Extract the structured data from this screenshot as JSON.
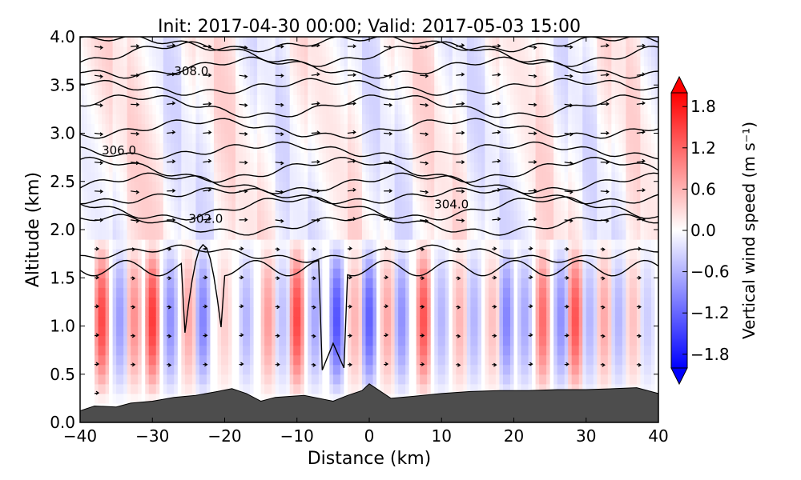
{
  "chart_data": {
    "type": "heatmap",
    "title": "Init: 2017-04-30 00:00; Valid: 2017-05-03 15:00",
    "xlabel": "Distance (km)",
    "ylabel": "Altitude (km)",
    "xlim": [
      -40,
      40
    ],
    "ylim": [
      0.0,
      4.0
    ],
    "x_ticks": [
      -40,
      -30,
      -20,
      -10,
      0,
      10,
      20,
      30,
      40
    ],
    "x_tick_labels": [
      "−40",
      "−30",
      "−20",
      "−10",
      "0",
      "10",
      "20",
      "30",
      "40"
    ],
    "y_ticks": [
      0.0,
      0.5,
      1.0,
      1.5,
      2.0,
      2.5,
      3.0,
      3.5,
      4.0
    ],
    "y_tick_labels": [
      "0.0",
      "0.5",
      "1.0",
      "1.5",
      "2.0",
      "2.5",
      "3.0",
      "3.5",
      "4.0"
    ],
    "colorbar": {
      "label": "Vertical wind speed (m s⁻¹)",
      "range": [
        -2.0,
        2.0
      ],
      "ticks": [
        1.8,
        1.2,
        0.6,
        0.0,
        -0.6,
        -1.2,
        -1.8
      ],
      "tick_labels": [
        "1.8",
        "1.2",
        "0.6",
        "0.0",
        "−0.6",
        "−1.2",
        "−1.8"
      ],
      "colormap": "bwr",
      "extend": "both"
    },
    "contour_labels": [
      {
        "text": "308.0",
        "x": -27,
        "y": 3.6
      },
      {
        "text": "306.0",
        "x": -37,
        "y": 2.78
      },
      {
        "text": "302.0",
        "x": -25,
        "y": 2.07
      },
      {
        "text": "304.0",
        "x": 9,
        "y": 2.22
      }
    ],
    "theta_contour_heights_km": [
      1.75,
      2.05,
      2.22,
      2.35,
      2.48,
      2.62,
      2.82,
      3.05,
      3.28,
      3.48,
      3.68,
      3.82,
      3.93
    ],
    "vertical_wind_columns": [
      {
        "x": -37,
        "w": 1.5
      },
      {
        "x": -34.5,
        "w": -0.8
      },
      {
        "x": -32.5,
        "w": 0.9
      },
      {
        "x": -30,
        "w": 1.6
      },
      {
        "x": -27.5,
        "w": -0.9
      },
      {
        "x": -25,
        "w": 0.7
      },
      {
        "x": -23,
        "w": -1.0
      },
      {
        "x": -20,
        "w": 0.4
      },
      {
        "x": -17,
        "w": -0.6
      },
      {
        "x": -14,
        "w": 0.8
      },
      {
        "x": -12,
        "w": -0.5
      },
      {
        "x": -10,
        "w": 1.5
      },
      {
        "x": -7.5,
        "w": -0.7
      },
      {
        "x": -4.5,
        "w": -1.4
      },
      {
        "x": -2,
        "w": 0.6
      },
      {
        "x": 0,
        "w": -1.3
      },
      {
        "x": 2.5,
        "w": 0.7
      },
      {
        "x": 4.5,
        "w": -0.9
      },
      {
        "x": 7.5,
        "w": 1.4
      },
      {
        "x": 10,
        "w": -0.6
      },
      {
        "x": 12.5,
        "w": 0.6
      },
      {
        "x": 14.5,
        "w": -0.6
      },
      {
        "x": 17,
        "w": 0.5
      },
      {
        "x": 19,
        "w": -1.0
      },
      {
        "x": 21.5,
        "w": -0.7
      },
      {
        "x": 24,
        "w": 1.2
      },
      {
        "x": 26.5,
        "w": -0.9
      },
      {
        "x": 28.5,
        "w": 1.4
      },
      {
        "x": 30.5,
        "w": -0.6
      },
      {
        "x": 32.5,
        "w": 0.7
      },
      {
        "x": 34.5,
        "w": -0.6
      },
      {
        "x": 36.5,
        "w": 0.5
      },
      {
        "x": 38.5,
        "w": -0.4
      }
    ],
    "terrain_km": [
      [
        -40,
        0.12
      ],
      [
        -38,
        0.17
      ],
      [
        -35,
        0.16
      ],
      [
        -33,
        0.2
      ],
      [
        -30,
        0.22
      ],
      [
        -27,
        0.26
      ],
      [
        -24,
        0.28
      ],
      [
        -21,
        0.32
      ],
      [
        -19,
        0.35
      ],
      [
        -17,
        0.3
      ],
      [
        -15,
        0.22
      ],
      [
        -13,
        0.26
      ],
      [
        -11,
        0.27
      ],
      [
        -9,
        0.28
      ],
      [
        -7,
        0.25
      ],
      [
        -5,
        0.22
      ],
      [
        -3,
        0.28
      ],
      [
        -1,
        0.33
      ],
      [
        0,
        0.4
      ],
      [
        1,
        0.35
      ],
      [
        3,
        0.25
      ],
      [
        6,
        0.27
      ],
      [
        10,
        0.3
      ],
      [
        14,
        0.32
      ],
      [
        18,
        0.33
      ],
      [
        22,
        0.33
      ],
      [
        26,
        0.34
      ],
      [
        30,
        0.34
      ],
      [
        34,
        0.35
      ],
      [
        37,
        0.36
      ],
      [
        40,
        0.3
      ]
    ]
  },
  "colors": {
    "terrain": "#4d4d4d",
    "contour": "#000000",
    "warm": "#ff0000",
    "cool": "#0000ff"
  }
}
